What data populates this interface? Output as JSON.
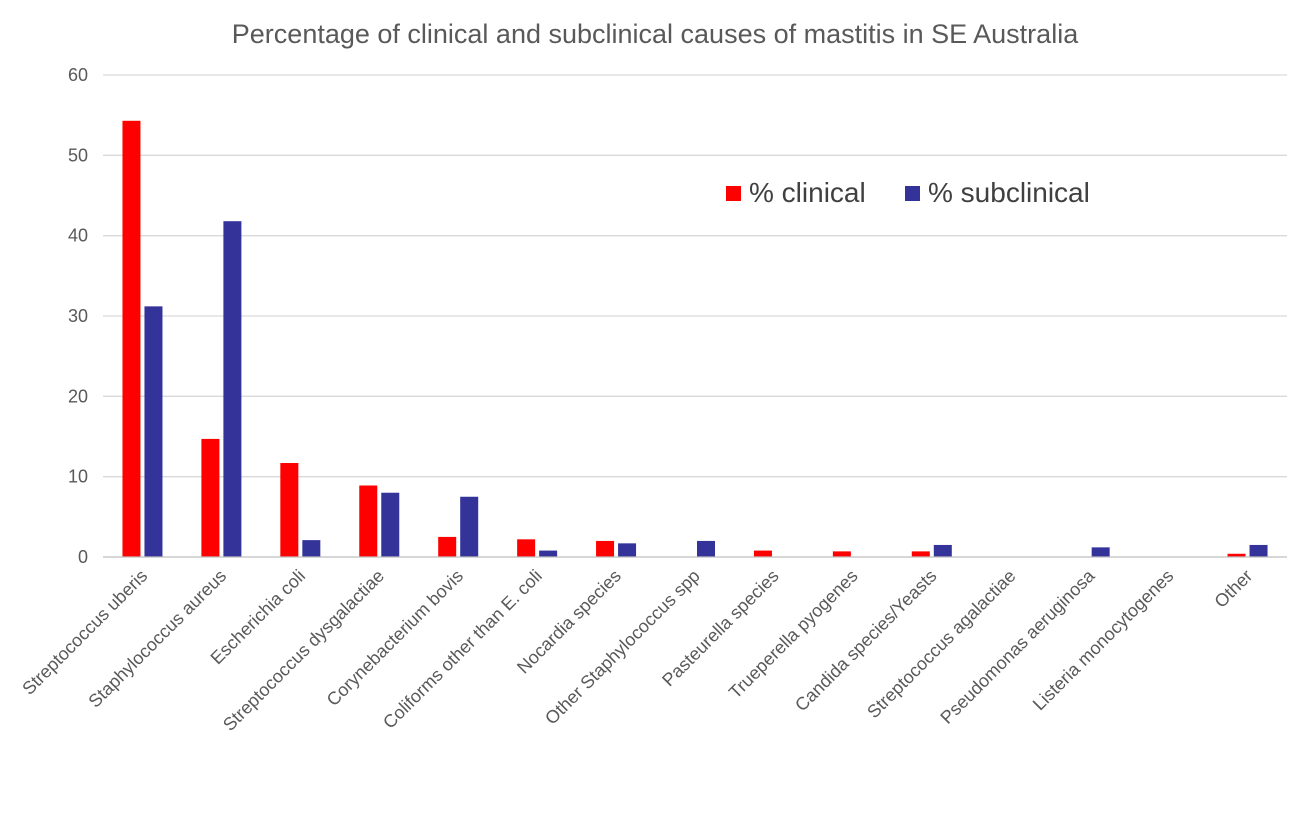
{
  "chart_data": {
    "type": "bar",
    "title": "Percentage of clinical and subclinical causes of mastitis in SE Australia",
    "xlabel": "",
    "ylabel": "",
    "ylim": [
      0,
      60
    ],
    "yticks": [
      0,
      10,
      20,
      30,
      40,
      50,
      60
    ],
    "ytick_labels": [
      "0",
      "10",
      "20",
      "30",
      "40",
      "50",
      "60"
    ],
    "grid": true,
    "legend_position": "top-right",
    "categories": [
      "Streptococcus uberis",
      "Staphylococcus aureus",
      "Escherichia coli",
      "Streptococcus dysgalactiae",
      "Corynebacterium bovis",
      "Coliforms other than E. coli",
      "Nocardia species",
      "Other Staphylococcus spp",
      "Pasteurella species",
      "Trueperella pyogenes",
      "Candida species/Yeasts",
      "Streptococcus agalactiae",
      "Pseudomonas aeruginosa",
      "Listeria monocytogenes",
      "Other"
    ],
    "series": [
      {
        "name": "% clinical",
        "color": "#ff0000",
        "values": [
          54.3,
          14.7,
          11.7,
          8.9,
          2.5,
          2.2,
          2.0,
          0,
          0.8,
          0.7,
          0.7,
          0,
          0,
          0,
          0.4
        ]
      },
      {
        "name": "% subclinical",
        "color": "#333399",
        "values": [
          31.2,
          41.8,
          2.1,
          8.0,
          7.5,
          0.8,
          1.7,
          2.0,
          0,
          0,
          1.5,
          0,
          1.2,
          0,
          1.5
        ]
      }
    ]
  }
}
